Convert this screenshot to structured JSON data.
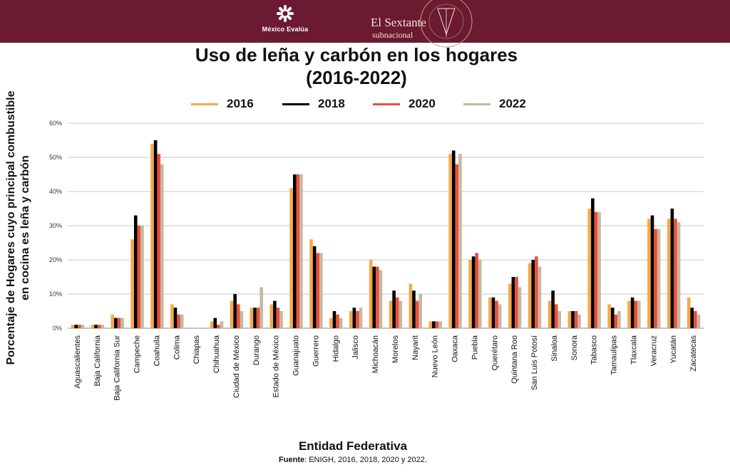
{
  "header": {
    "brand_left": "México Evalúa",
    "brand_right_name": "El Sextante",
    "brand_right_sub": "subnacional",
    "background_color": "#6b1a31"
  },
  "chart_data": {
    "type": "bar",
    "title_line1": "Uso de leña y carbón en los hogares",
    "title_line2": "(2016-2022)",
    "xlabel": "Entidad Federativa",
    "ylabel_line1": "Porcentaje de Hogares cuyo principal combustible",
    "ylabel_line2": "en cocina es leña y carbón",
    "ylim": [
      0,
      60
    ],
    "yticks": [
      "0%",
      "10%",
      "20%",
      "30%",
      "40%",
      "50%",
      "60%"
    ],
    "grid": true,
    "legend_position": "top",
    "categories": [
      "Aguascalientes",
      "Baja California",
      "Baja California Sur",
      "Campeche",
      "Coahuila",
      "Colima",
      "Chiapas",
      "Chihuahua",
      "Ciudad de México",
      "Durango",
      "Estado de México",
      "Guanajuato",
      "Guerrero",
      "Hidalgo",
      "Jalisco",
      "Michoacán",
      "Morelos",
      "Nayarit",
      "Nuevo León",
      "Oaxaca",
      "Puebla",
      "Querétaro",
      "Quintana Roo",
      "San Luis Potosí",
      "Sinaloa",
      "Sonora",
      "Tabasco",
      "Tamaulipas",
      "Tlaxcala",
      "Veracruz",
      "Yucatán",
      "Zacatecas"
    ],
    "series": [
      {
        "name": "2016",
        "color": "#f5a94a",
        "values": [
          1,
          1,
          4,
          26,
          54,
          7,
          0,
          2,
          8,
          6,
          7,
          41,
          26,
          3,
          5,
          20,
          8,
          13,
          2,
          51,
          20,
          9,
          13,
          19,
          8,
          5,
          35,
          7,
          8,
          32,
          32,
          9
        ]
      },
      {
        "name": "2018",
        "color": "#000000",
        "values": [
          1,
          1,
          3,
          33,
          55,
          6,
          0,
          3,
          10,
          6,
          8,
          45,
          24,
          5,
          6,
          18,
          11,
          11,
          2,
          52,
          21,
          9,
          15,
          20,
          11,
          5,
          38,
          6,
          9,
          33,
          35,
          6
        ]
      },
      {
        "name": "2020",
        "color": "#e8503a",
        "values": [
          1,
          1,
          3,
          30,
          51,
          4,
          0,
          1,
          7,
          6,
          6,
          45,
          22,
          4,
          5,
          18,
          9,
          8,
          2,
          48,
          22,
          8,
          15,
          21,
          7,
          5,
          34,
          4,
          8,
          29,
          32,
          5
        ]
      },
      {
        "name": "2022",
        "color": "#c8b8a2",
        "values": [
          1,
          1,
          3,
          30,
          48,
          4,
          0,
          2,
          5,
          12,
          5,
          45,
          22,
          3,
          6,
          17,
          8,
          10,
          2,
          51,
          20,
          7,
          12,
          18,
          5,
          4,
          34,
          5,
          8,
          29,
          31,
          4
        ]
      }
    ]
  },
  "footer": {
    "source_label": "Fuente",
    "source_text": ": ENIGH, 2016, 2018, 2020 y 2022."
  }
}
